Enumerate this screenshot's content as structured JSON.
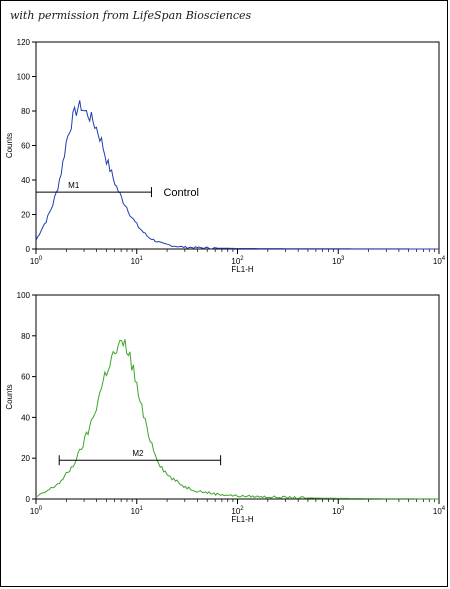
{
  "watermark": "with permission from LifeSpan Biosciences",
  "chart_data": [
    {
      "type": "line",
      "xscale": "log",
      "xlim": [
        1,
        10000
      ],
      "ylim": [
        0,
        120
      ],
      "ylabel": "Counts",
      "xlabel": "FL1-H",
      "color": "#1f3fae",
      "yticks": [
        0,
        20,
        40,
        60,
        80,
        100,
        120
      ],
      "xticks": [
        1,
        10,
        100,
        1000,
        10000
      ],
      "series": [
        {
          "x": [
            1.0,
            1.1,
            1.2,
            1.3,
            1.45,
            1.6,
            1.8,
            2.0,
            2.2,
            2.4,
            2.6,
            2.8,
            3.0,
            3.3,
            3.6,
            4.0,
            4.5,
            5.0,
            5.6,
            6.3,
            7.0,
            8.0,
            9.0,
            10.0,
            11.5,
            13.0,
            15.0,
            18.0,
            22.0,
            30.0,
            50.0,
            100.0,
            300.0,
            1000.0,
            10000.0
          ],
          "values": [
            5,
            10,
            14,
            18,
            25,
            33,
            46,
            62,
            72,
            78,
            82,
            83,
            80,
            78,
            75,
            70,
            62,
            52,
            44,
            36,
            30,
            24,
            18,
            14,
            10,
            7,
            5,
            3,
            2,
            1,
            0.6,
            0.3,
            0.2,
            0.1,
            0
          ]
        }
      ],
      "gate": {
        "label": "M1",
        "x_start": 1.0,
        "x_end": 14.0,
        "y": 33
      },
      "annotation": "Control"
    },
    {
      "type": "line",
      "xscale": "log",
      "xlim": [
        1,
        10000
      ],
      "ylim": [
        0,
        100
      ],
      "ylabel": "Counts",
      "xlabel": "FL1-H",
      "color": "#3da52a",
      "yticks": [
        0,
        20,
        40,
        60,
        80,
        100
      ],
      "xticks": [
        1,
        10,
        100,
        1000,
        10000
      ],
      "series": [
        {
          "x": [
            1.0,
            1.2,
            1.5,
            1.8,
            2.0,
            2.3,
            2.6,
            3.0,
            3.4,
            3.8,
            4.2,
            4.6,
            5.0,
            5.5,
            6.0,
            6.6,
            7.2,
            7.8,
            8.5,
            9.3,
            10.0,
            11.0,
            12.0,
            13.5,
            15.0,
            17.0,
            20.0,
            24.0,
            30.0,
            40.0,
            60.0,
            100.0,
            200.0,
            500.0,
            1000.0,
            10000.0
          ],
          "values": [
            1,
            3,
            6,
            9,
            12,
            16,
            21,
            28,
            35,
            42,
            50,
            57,
            63,
            68,
            71,
            74,
            76,
            75,
            70,
            63,
            55,
            46,
            38,
            30,
            23,
            17,
            12,
            9,
            6,
            4,
            2.5,
            1.5,
            1,
            0.5,
            0.3,
            0
          ]
        }
      ],
      "gate": {
        "label": "M2",
        "x_start": 1.7,
        "x_end": 68.0,
        "y": 19
      },
      "annotation": ""
    }
  ]
}
